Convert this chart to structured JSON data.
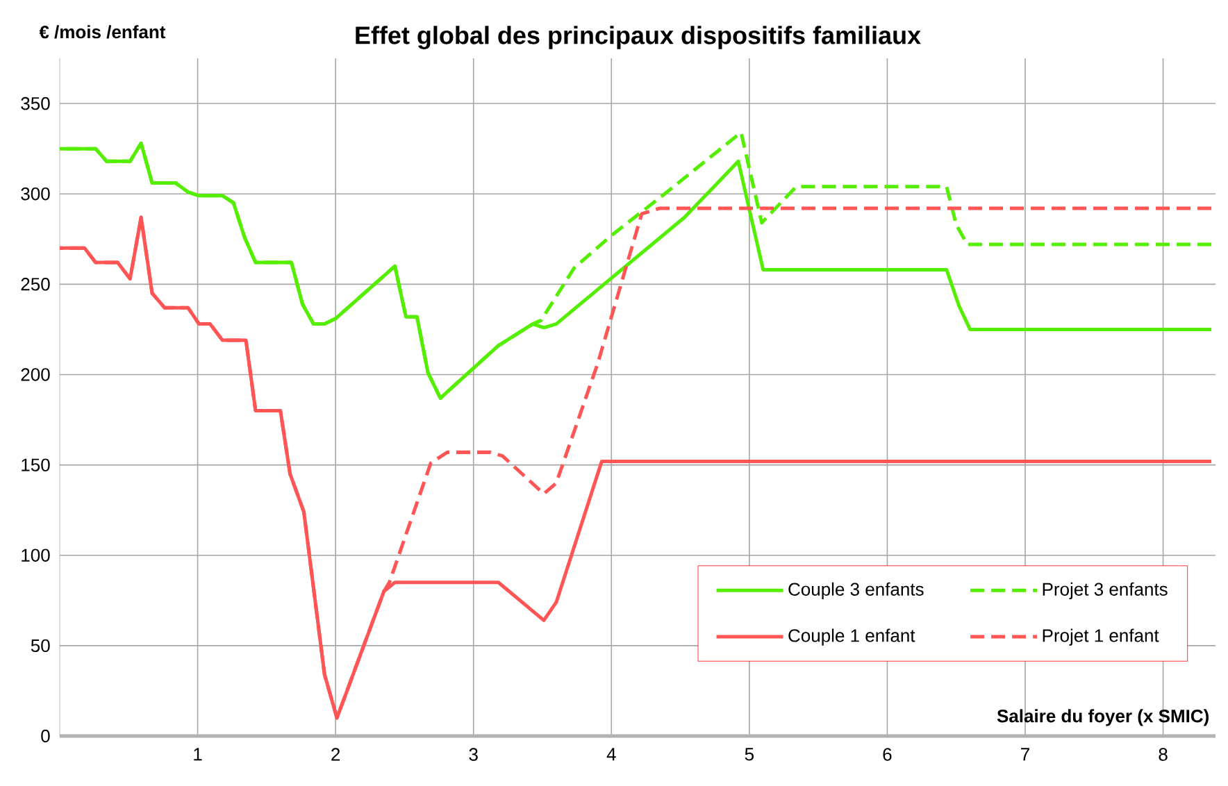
{
  "chart_data": {
    "type": "line",
    "title": "Effet global des principaux dispositifs familiaux",
    "ylabel": "€ /mois /enfant",
    "xlabel": "Salaire du foyer (x SMIC)",
    "xlim": [
      0,
      8.38
    ],
    "ylim": [
      0,
      375
    ],
    "xticks": [
      1,
      2,
      3,
      4,
      5,
      6,
      7,
      8
    ],
    "yticks": [
      0,
      50,
      100,
      150,
      200,
      250,
      300,
      350
    ],
    "grid": true,
    "legend": "bottom right",
    "series": [
      {
        "name": "Couple 3 enfants",
        "color": "#55ee00",
        "line_style": "solid",
        "x": [
          0,
          0.26,
          0.34,
          0.51,
          0.59,
          0.67,
          0.84,
          0.93,
          1.01,
          1.18,
          1.26,
          1.34,
          1.42,
          1.68,
          1.76,
          1.84,
          1.92,
          2.0,
          2.43,
          2.51,
          2.59,
          2.67,
          2.76,
          3.18,
          3.43,
          3.51,
          3.6,
          4.53,
          4.92,
          5.1,
          6.43,
          6.52,
          6.6,
          8.35
        ],
        "values": [
          325,
          325,
          318,
          318,
          328,
          306,
          306,
          301,
          299,
          299,
          295,
          276,
          262,
          262,
          239,
          228,
          228,
          231,
          260,
          232,
          232,
          201,
          187,
          216,
          228,
          226,
          228,
          287,
          318,
          258,
          258,
          238,
          225,
          225
        ]
      },
      {
        "name": "Projet 3 enfants",
        "color": "#55ee00",
        "line_style": "dashed",
        "x": [
          0,
          0.26,
          0.34,
          0.51,
          0.59,
          0.67,
          0.84,
          0.93,
          1.01,
          1.18,
          1.26,
          1.34,
          1.42,
          1.68,
          1.76,
          1.84,
          1.92,
          2.0,
          2.43,
          2.51,
          2.59,
          2.67,
          2.76,
          3.18,
          3.43,
          3.49,
          3.73,
          4.0,
          4.37,
          4.94,
          5.09,
          5.34,
          6.43,
          6.5,
          6.58,
          8.35
        ],
        "values": [
          325,
          325,
          318,
          318,
          328,
          306,
          306,
          301,
          299,
          299,
          295,
          276,
          262,
          262,
          239,
          228,
          228,
          231,
          260,
          232,
          232,
          201,
          187,
          216,
          228,
          230,
          259,
          277,
          299,
          334,
          284,
          304,
          304,
          283,
          272,
          272
        ]
      },
      {
        "name": "Couple 1 enfant",
        "color": "#ff5555",
        "line_style": "solid",
        "x": [
          0,
          0.18,
          0.26,
          0.42,
          0.51,
          0.59,
          0.67,
          0.76,
          0.93,
          1.01,
          1.09,
          1.18,
          1.35,
          1.42,
          1.6,
          1.67,
          1.77,
          1.92,
          2.01,
          2.35,
          2.43,
          3.18,
          3.51,
          3.6,
          3.93,
          8.35
        ],
        "values": [
          270,
          270,
          262,
          262,
          253,
          287,
          245,
          237,
          237,
          228,
          228,
          219,
          219,
          180,
          180,
          145,
          124,
          34,
          10,
          80,
          85,
          85,
          64,
          74,
          152,
          152
        ]
      },
      {
        "name": "Projet 1 enfant",
        "color": "#ff5555",
        "line_style": "dashed",
        "x": [
          0,
          0.18,
          0.26,
          0.42,
          0.51,
          0.59,
          0.67,
          0.76,
          0.93,
          1.01,
          1.09,
          1.18,
          1.35,
          1.42,
          1.6,
          1.67,
          1.77,
          1.92,
          2.01,
          2.35,
          2.39,
          2.69,
          2.81,
          3.12,
          3.21,
          3.51,
          3.6,
          3.9,
          4.22,
          4.35,
          8.35
        ],
        "values": [
          270,
          270,
          262,
          262,
          253,
          287,
          245,
          237,
          237,
          228,
          228,
          219,
          219,
          180,
          180,
          145,
          124,
          34,
          10,
          80,
          85,
          151,
          157,
          157,
          155,
          134,
          140,
          206,
          289,
          292,
          292
        ]
      }
    ]
  }
}
